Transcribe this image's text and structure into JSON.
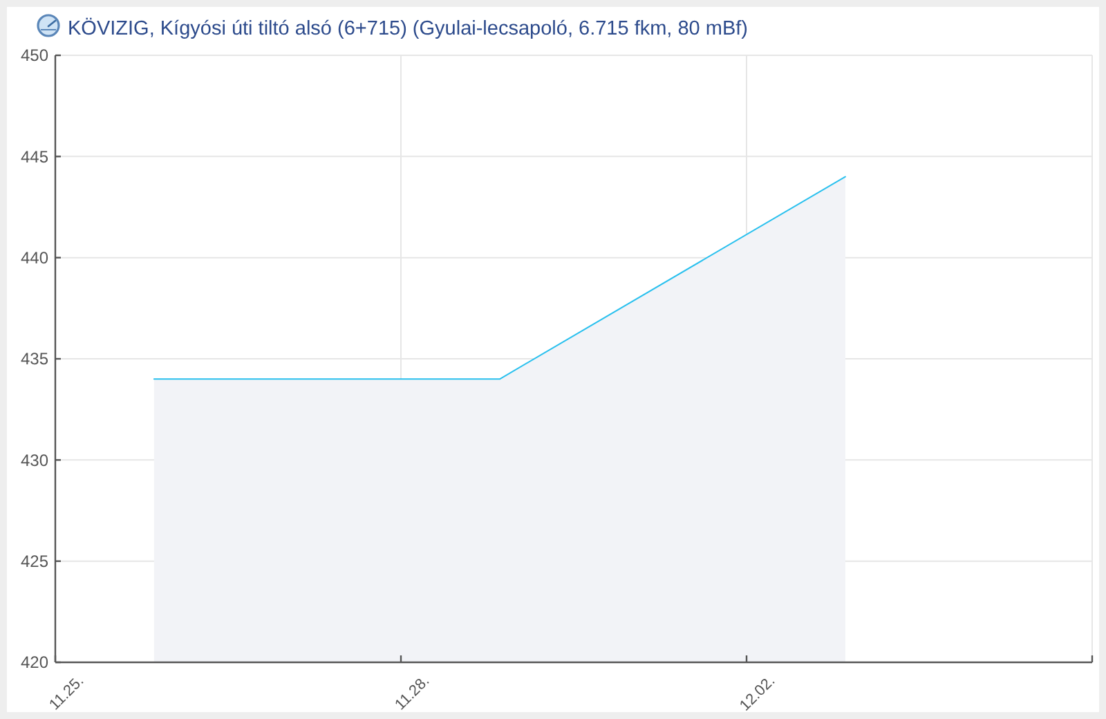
{
  "chart_data": {
    "type": "area",
    "title": "KÖVIZIG, Kígyósi úti tiltó alsó (6+715) (Gyulai-lecsapoló, 6.715 fkm, 80 mBf)",
    "x": [
      "--11-26",
      "--11-29T12:00",
      "--12-03"
    ],
    "series": [
      {
        "color": "#29c0ee",
        "values": [
          434,
          434,
          444
        ]
      }
    ],
    "xlim": [
      "--11-25",
      "--12-05T12:00"
    ],
    "xticks": [
      {
        "value": "--11-25",
        "label": "11.25."
      },
      {
        "value": "--11-28T12:00",
        "label": "11.28."
      },
      {
        "value": "--12-02",
        "label": "12.02."
      },
      {
        "value": "--12-05T12:00",
        "label": null
      }
    ],
    "ylim": [
      420,
      450
    ],
    "yticks": [
      420,
      425,
      430,
      435,
      440,
      445,
      450
    ],
    "grid": true
  }
}
